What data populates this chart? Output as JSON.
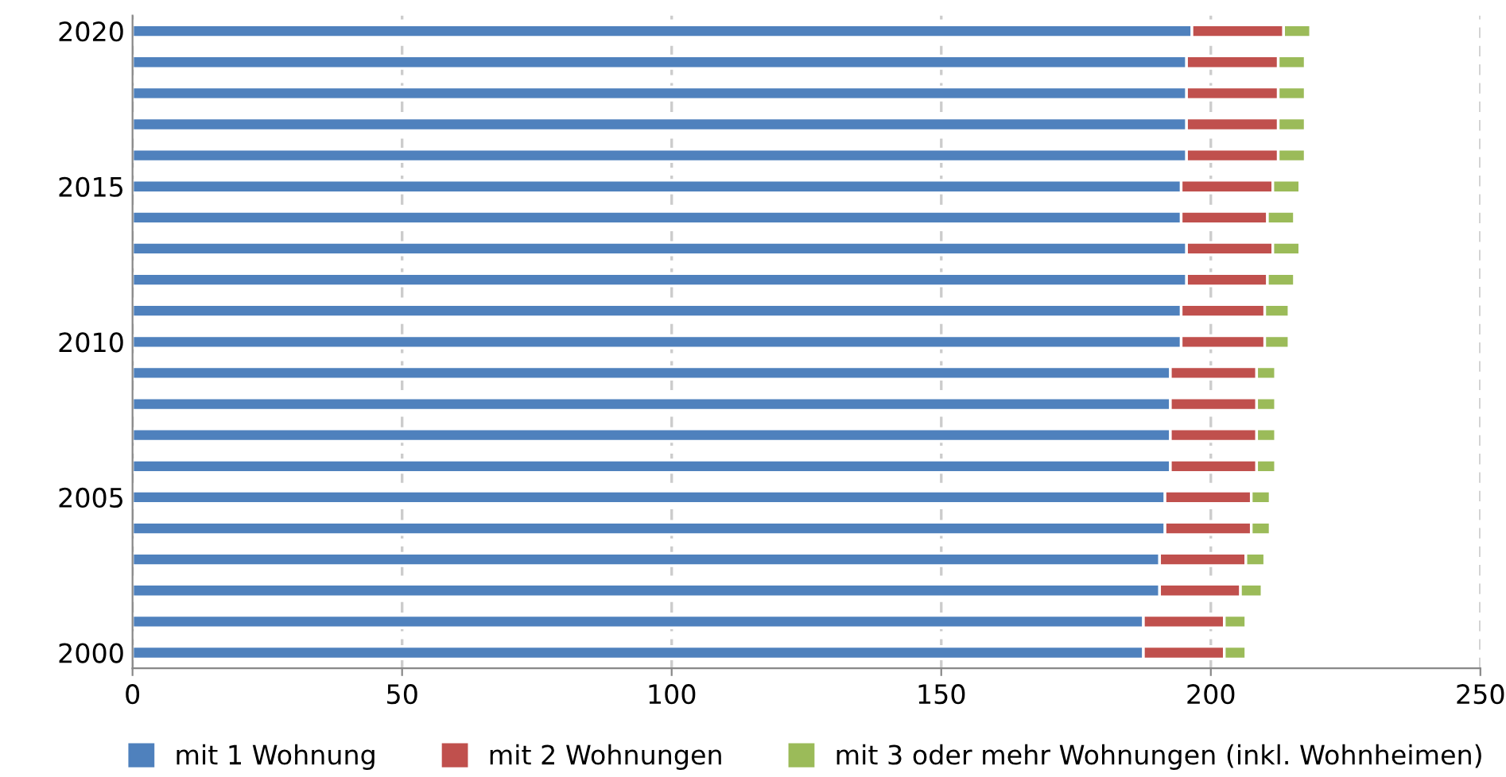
{
  "chart_data": {
    "type": "bar",
    "orientation": "horizontal",
    "stacked": true,
    "categories": [
      "2020",
      null,
      null,
      null,
      null,
      "2015",
      null,
      null,
      null,
      null,
      "2010",
      null,
      null,
      null,
      null,
      "2005",
      null,
      null,
      null,
      null,
      "2000"
    ],
    "series": [
      {
        "name": "mit 1 Wohnung",
        "color": "#4f81bd",
        "values": [
          196.5,
          195.5,
          195.5,
          195.5,
          195.5,
          194.5,
          194.5,
          195.5,
          195.5,
          194.5,
          194.5,
          192.5,
          192.5,
          192.5,
          192.5,
          191.5,
          191.5,
          190.5,
          190.5,
          187.5,
          187.5
        ]
      },
      {
        "name": "mit 2 Wohnungen",
        "color": "#c0504d",
        "values": [
          17,
          17,
          17,
          17,
          17,
          17,
          16,
          16,
          15,
          15.5,
          15.5,
          16,
          16,
          16,
          16,
          16,
          16,
          16,
          15,
          15,
          15
        ]
      },
      {
        "name": "mit 3 oder mehr Wohnungen (inkl. Wohnheimen)",
        "color": "#9bbb59",
        "values": [
          5,
          5,
          5,
          5,
          5,
          5,
          5,
          5,
          5,
          4.5,
          4.5,
          3.5,
          3.5,
          3.5,
          3.5,
          3.5,
          3.5,
          3.5,
          4,
          4,
          4
        ]
      }
    ],
    "xlim": [
      0,
      250
    ],
    "xticks": [
      0,
      50,
      100,
      150,
      200,
      250
    ],
    "grid": "x",
    "legend": "bottom"
  }
}
